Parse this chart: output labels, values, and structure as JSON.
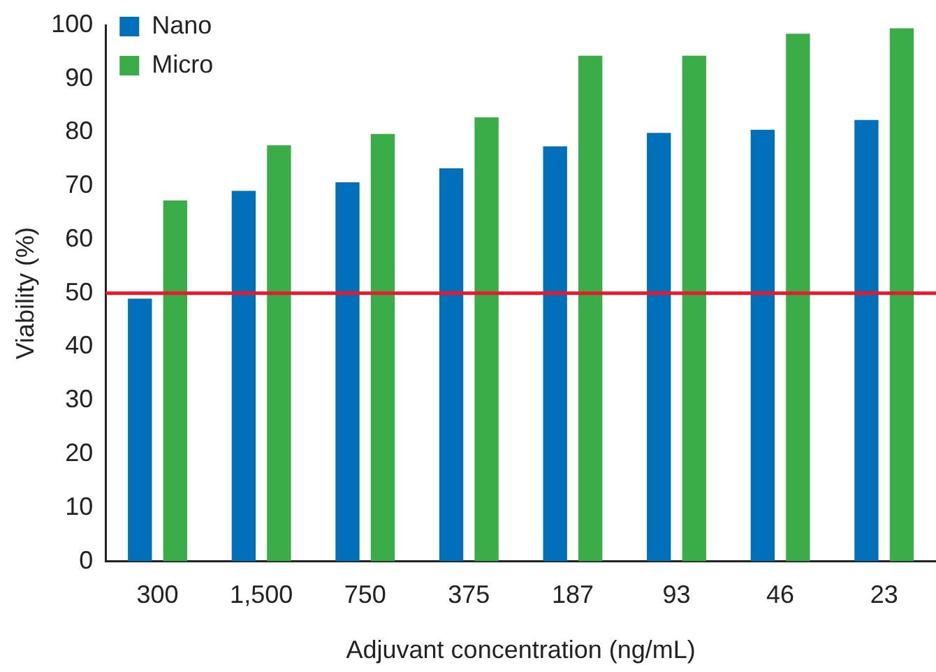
{
  "chart_data": {
    "type": "bar",
    "xlabel": "Adjuvant concentration (ng/mL)",
    "ylabel": "Viability (%)",
    "categories": [
      "300",
      "1,500",
      "750",
      "375",
      "187",
      "93",
      "46",
      "23"
    ],
    "series": [
      {
        "name": "Nano",
        "color": "#0070bb",
        "values": [
          49.0,
          69.1,
          70.7,
          73.3,
          77.4,
          79.9,
          80.5,
          82.3
        ]
      },
      {
        "name": "Micro",
        "color": "#3aac48",
        "values": [
          67.3,
          77.6,
          79.7,
          82.8,
          94.3,
          94.3,
          98.4,
          99.4
        ]
      }
    ],
    "ylim": [
      0,
      100
    ],
    "yticks": [
      0,
      10,
      20,
      30,
      40,
      50,
      60,
      70,
      80,
      90,
      100
    ],
    "ref_lines": [
      {
        "axis": "y",
        "value": 50,
        "color": "#e8192c"
      }
    ],
    "grid": false,
    "legend": "top left"
  }
}
